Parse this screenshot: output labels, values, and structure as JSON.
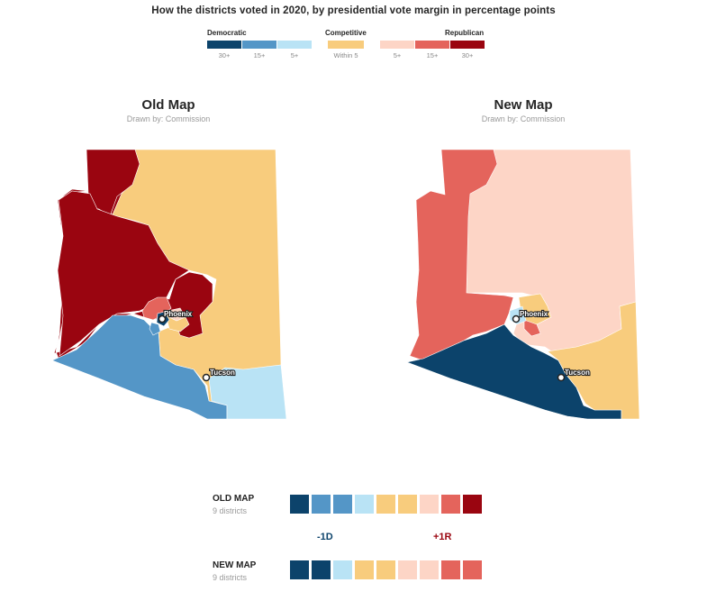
{
  "title": "How the districts voted in 2020, by presidential vote margin in percentage points",
  "colors": {
    "d30": "#0c436b",
    "d15": "#5496c7",
    "d5": "#b9e3f5",
    "comp": "#f8cc7d",
    "r5": "#fdd5c6",
    "r15": "#e4645c",
    "r30": "#9a0510"
  },
  "legend": {
    "democratic": "Democratic",
    "competitive": "Competitive",
    "republican": "Republican",
    "ticks": {
      "d30": "30+",
      "d15": "15+",
      "d5": "5+",
      "comp": "Within 5",
      "r5": "5+",
      "r15": "15+",
      "r30": "30+"
    }
  },
  "maps": {
    "old": {
      "title": "Old Map",
      "subtitle": "Drawn by: Commission"
    },
    "new": {
      "title": "New Map",
      "subtitle": "Drawn by: Commission"
    }
  },
  "cities": {
    "phoenix": "Phoenix",
    "tucson": "Tucson"
  },
  "summary": {
    "old": {
      "label": "OLD MAP",
      "sub": "9 districts",
      "cells": [
        "d30",
        "d15",
        "d15",
        "d5",
        "comp",
        "comp",
        "r5",
        "r15",
        "r30"
      ]
    },
    "new": {
      "label": "NEW MAP",
      "sub": "9 districts",
      "cells": [
        "d30",
        "d30",
        "d5",
        "comp",
        "comp",
        "r5",
        "r5",
        "r15",
        "r15"
      ]
    },
    "change_d": "-1D",
    "change_r": "+1R"
  }
}
